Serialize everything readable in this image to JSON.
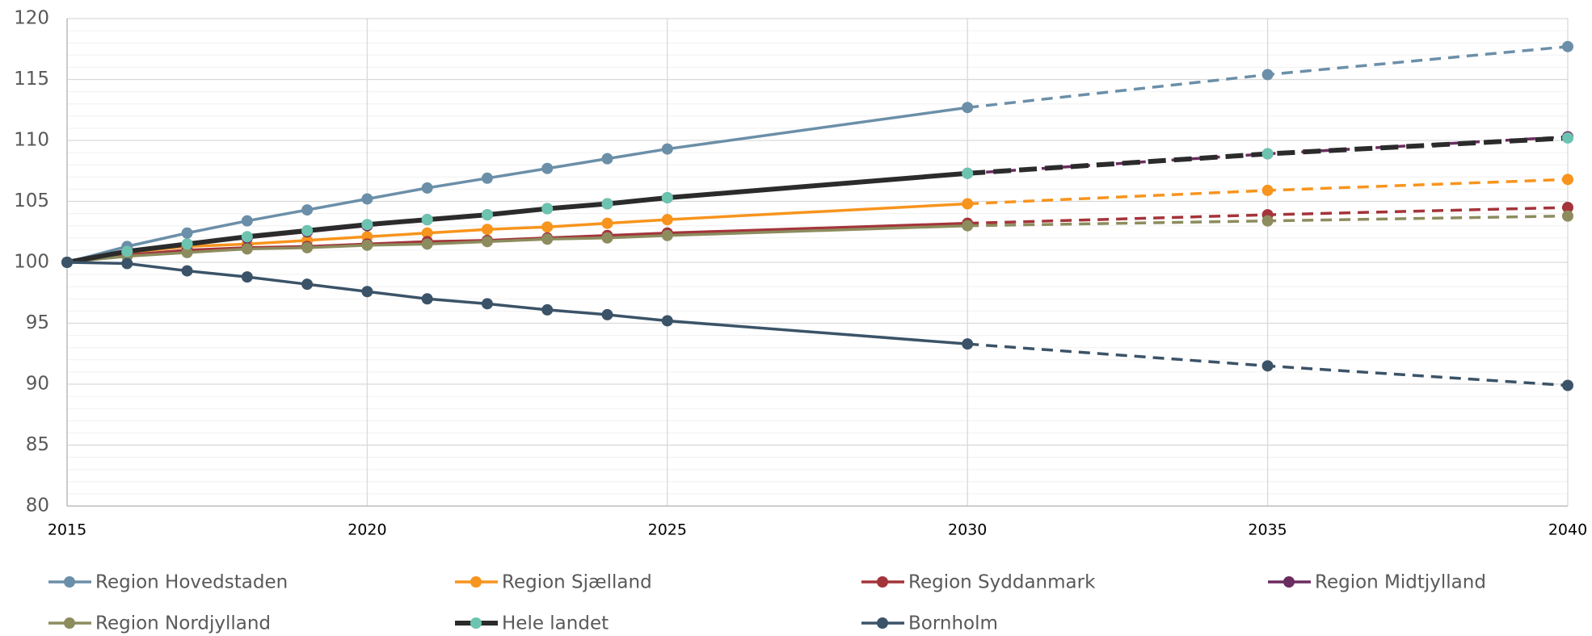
{
  "chart_data": {
    "type": "line",
    "x": [
      2015,
      2016,
      2017,
      2018,
      2019,
      2020,
      2021,
      2022,
      2023,
      2024,
      2025,
      2030,
      2035,
      2040
    ],
    "xlim": [
      2015,
      2040
    ],
    "xticks": [
      2015,
      2020,
      2025,
      2030,
      2035,
      2040
    ],
    "ylim": [
      80,
      120
    ],
    "yticks": [
      80,
      85,
      90,
      95,
      100,
      105,
      110,
      115,
      120
    ],
    "grid": true,
    "legend": "bottom",
    "projection_start": 2030,
    "series": [
      {
        "name": "Region Hovedstaden",
        "color": "#6b8fa8",
        "values": [
          100,
          101.3,
          102.4,
          103.4,
          104.3,
          105.2,
          106.1,
          106.9,
          107.7,
          108.5,
          109.3,
          112.7,
          115.4,
          117.7
        ]
      },
      {
        "name": "Region Sjælland",
        "color": "#f7941d",
        "values": [
          100,
          100.8,
          101.3,
          101.5,
          101.8,
          102.1,
          102.4,
          102.7,
          102.9,
          103.2,
          103.5,
          104.8,
          105.9,
          106.8
        ]
      },
      {
        "name": "Region Syddanmark",
        "color": "#a4343a",
        "values": [
          100,
          100.6,
          101.0,
          101.2,
          101.3,
          101.5,
          101.7,
          101.8,
          102.0,
          102.2,
          102.4,
          103.2,
          103.9,
          104.5
        ]
      },
      {
        "name": "Region Midtjylland",
        "color": "#6b2c5f",
        "values": [
          100,
          100.9,
          101.5,
          102.0,
          102.5,
          103.0,
          103.5,
          103.9,
          104.4,
          104.8,
          105.3,
          107.3,
          108.9,
          110.3
        ]
      },
      {
        "name": "Region Nordjylland",
        "color": "#8c8c5e",
        "values": [
          100,
          100.5,
          100.8,
          101.1,
          101.2,
          101.4,
          101.5,
          101.7,
          101.9,
          102.0,
          102.2,
          103.0,
          103.4,
          103.8
        ]
      },
      {
        "name": "Hele landet",
        "color": "#2b2b2b",
        "marker_color": "#6cc4b0",
        "values": [
          100,
          100.9,
          101.5,
          102.1,
          102.6,
          103.1,
          103.5,
          103.9,
          104.4,
          104.8,
          105.3,
          107.3,
          108.9,
          110.2
        ]
      },
      {
        "name": "Bornholm",
        "color": "#3b5368",
        "values": [
          100,
          99.9,
          99.3,
          98.8,
          98.2,
          97.6,
          97.0,
          96.6,
          96.1,
          95.7,
          95.2,
          93.3,
          91.5,
          89.9
        ]
      }
    ]
  }
}
